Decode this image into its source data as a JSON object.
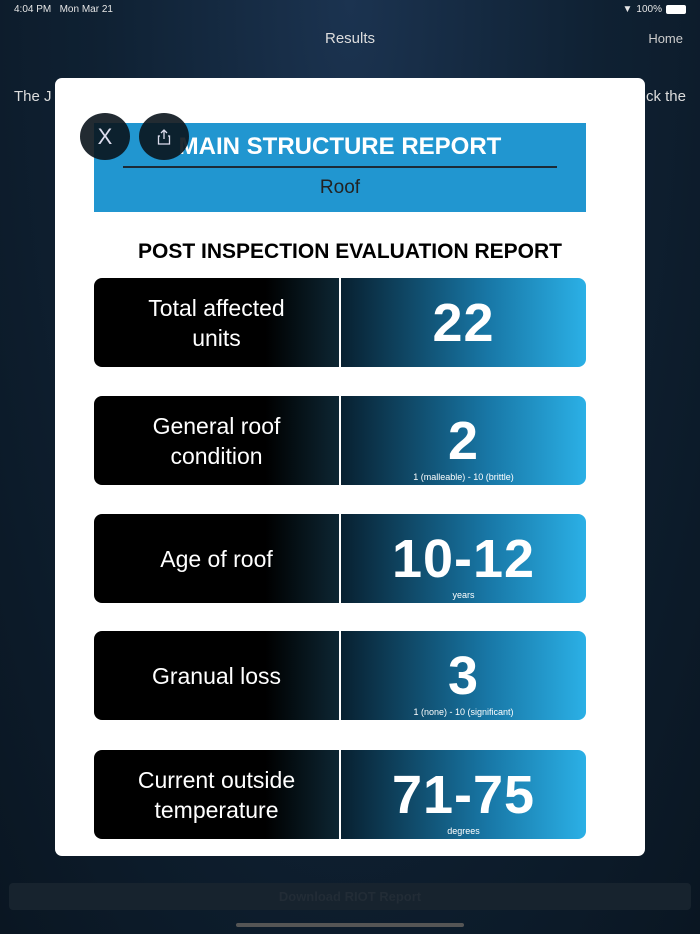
{
  "status": {
    "time": "4:04 PM",
    "date": "Mon Mar 21",
    "battery": "100%"
  },
  "nav": {
    "title": "Results",
    "home": "Home"
  },
  "background": {
    "text_left": "The J",
    "text_right": "ck the",
    "download_label": "Download RIOT Report"
  },
  "modal": {
    "close_label": "X",
    "banner_title": "MAIN STRUCTURE REPORT",
    "banner_subtitle": "Roof",
    "heading": "POST INSPECTION EVALUATION REPORT",
    "rows": [
      {
        "label": "Total affected units",
        "value": "22",
        "note": ""
      },
      {
        "label": "General roof condition",
        "value": "2",
        "note": "1 (malleable) - 10 (brittle)"
      },
      {
        "label": "Age of roof",
        "value": "10-12",
        "note": "years"
      },
      {
        "label": "Granual loss",
        "value": "3",
        "note": "1 (none) - 10 (significant)"
      },
      {
        "label": "Current outside temperature",
        "value": "71-75",
        "note": "degrees"
      }
    ]
  }
}
